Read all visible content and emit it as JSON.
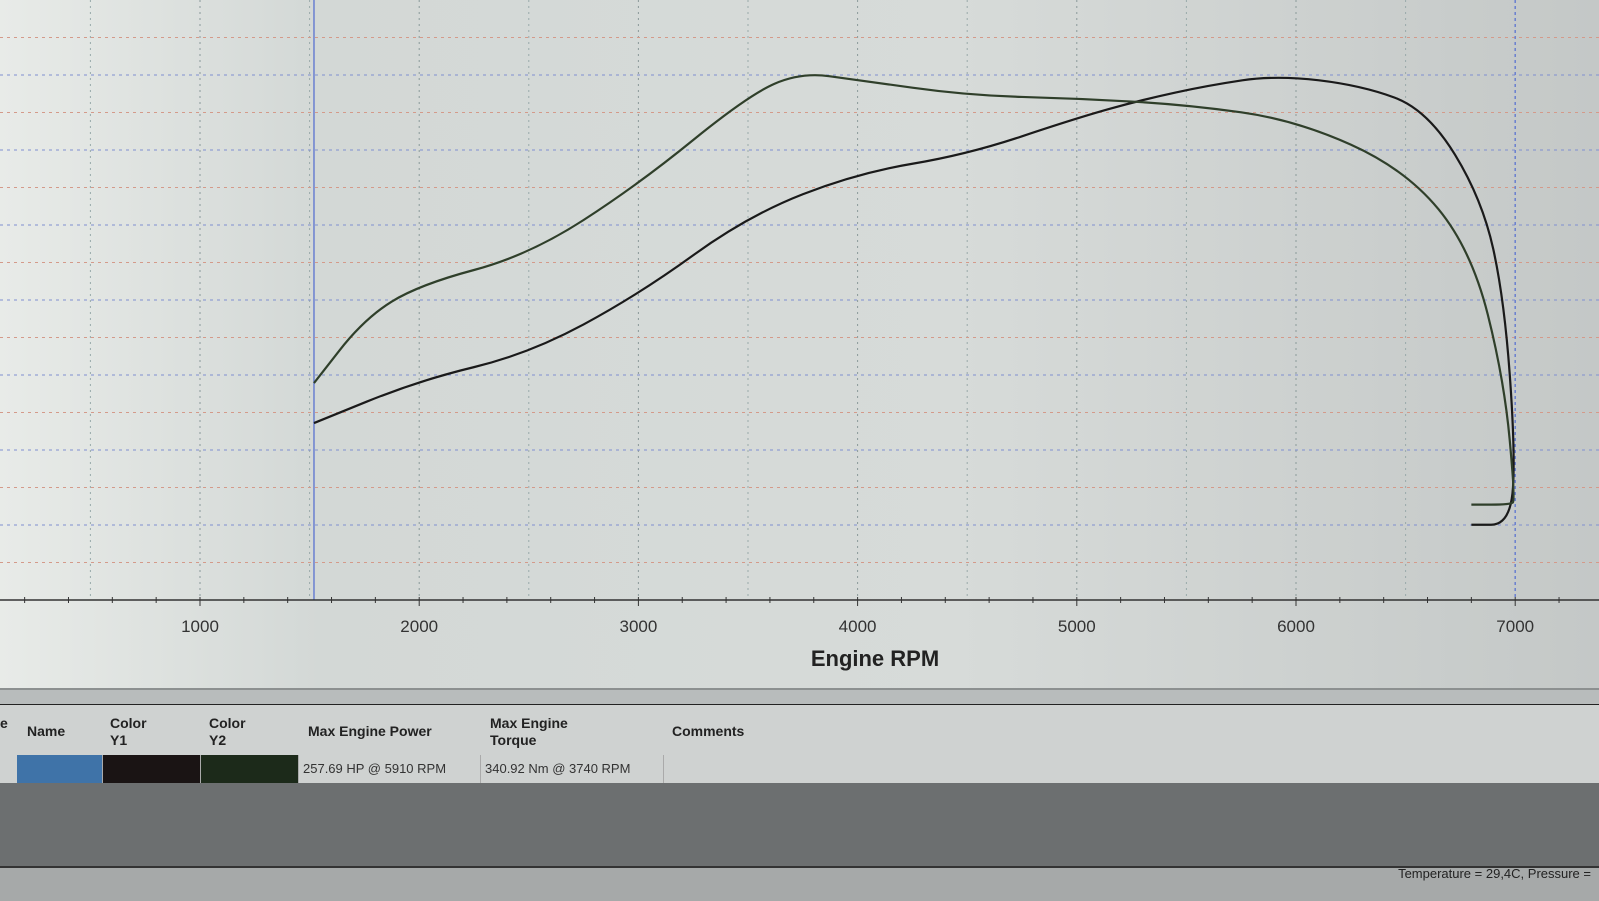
{
  "chart_data": {
    "type": "line",
    "xlabel": "Engine RPM",
    "xlim": [
      0,
      7200
    ],
    "xticks": [
      "1000",
      "2000",
      "3000",
      "4000",
      "5000",
      "6000",
      "7000"
    ],
    "grid": true,
    "series": [
      {
        "color": "#1a1a1a",
        "units": "HP",
        "ylim": [
          0,
          295
        ],
        "x": [
          1520,
          2000,
          2500,
          3000,
          3500,
          4000,
          4500,
          5000,
          5300,
          5600,
          5910,
          6300,
          6600,
          6850,
          6950,
          7000,
          6980,
          6800
        ],
        "y": [
          87,
          108,
          121,
          150,
          189,
          210,
          219,
          237,
          246,
          253,
          258,
          253,
          241,
          197,
          148,
          74,
          37,
          37
        ]
      },
      {
        "color": "#2f3f2a",
        "units": "Nm",
        "ylim": [
          0,
          390
        ],
        "x": [
          1520,
          1750,
          2000,
          2500,
          3000,
          3500,
          3740,
          4000,
          4500,
          5000,
          5500,
          6000,
          6500,
          6800,
          6950,
          7000,
          6980,
          6800
        ],
        "y": [
          141,
          183,
          205,
          224,
          270,
          328,
          343,
          338,
          328,
          326,
          322,
          312,
          280,
          228,
          143,
          65,
          62,
          62
        ]
      }
    ]
  },
  "table": {
    "headers": {
      "cut": "e",
      "name": "Name",
      "color_y1": "Color\nY1",
      "color_y2": "Color\nY2",
      "max_power": "Max Engine Power",
      "max_torque": "Max Engine\nTorque",
      "comments": "Comments"
    },
    "row": {
      "name_color": "#3f73a8",
      "color_y1": "#1a1414",
      "color_y2": "#1c2a1a",
      "max_power": "257.69 HP @ 5910 RPM",
      "max_torque": "340.92 Nm @ 3740 RPM",
      "comments": ""
    }
  },
  "status": "Temperature = 29,4C, Pressure ="
}
